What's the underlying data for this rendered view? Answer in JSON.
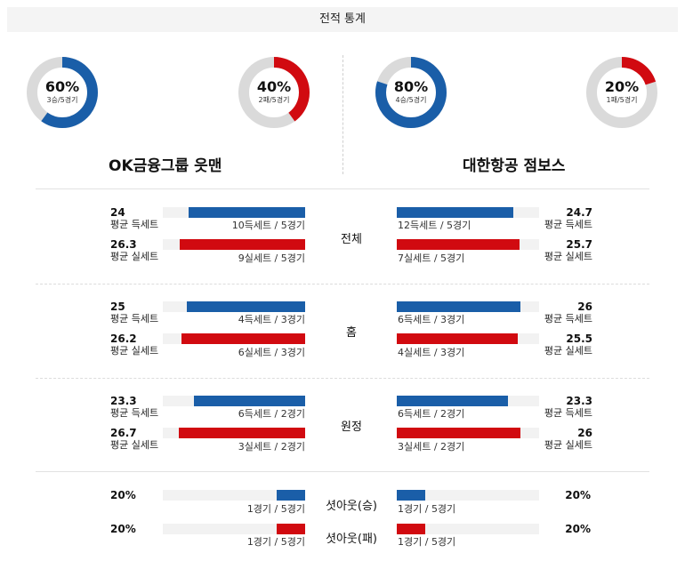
{
  "title": "전적 통계",
  "colors": {
    "blue": "#1a5ea8",
    "red": "#d10a10",
    "track": "#dadada"
  },
  "donuts": [
    {
      "pct_label": "60%",
      "sub": "3승/5경기",
      "value": 0.6,
      "color": "blue"
    },
    {
      "pct_label": "40%",
      "sub": "2패/5경기",
      "value": 0.4,
      "color": "red"
    },
    {
      "pct_label": "80%",
      "sub": "4승/5경기",
      "value": 0.8,
      "color": "blue"
    },
    {
      "pct_label": "20%",
      "sub": "1패/5경기",
      "value": 0.2,
      "color": "red"
    }
  ],
  "teams": {
    "left": "OK금융그룹 읏맨",
    "right": "대한항공 점보스"
  },
  "sections": [
    {
      "category": "전체",
      "left": [
        {
          "value": "24",
          "label": "평균 득세트",
          "caption": "10득세트 / 5경기",
          "fill": 0.82,
          "color": "blue"
        },
        {
          "value": "26.3",
          "label": "평균 실세트",
          "caption": "9실세트 / 5경기",
          "fill": 0.88,
          "color": "red"
        }
      ],
      "right": [
        {
          "value": "24.7",
          "label": "평균 득세트",
          "caption": "12득세트 / 5경기",
          "fill": 0.82,
          "color": "blue"
        },
        {
          "value": "25.7",
          "label": "평균 실세트",
          "caption": "7실세트 / 5경기",
          "fill": 0.86,
          "color": "red"
        }
      ]
    },
    {
      "category": "홈",
      "left": [
        {
          "value": "25",
          "label": "평균 득세트",
          "caption": "4득세트 / 3경기",
          "fill": 0.83,
          "color": "blue"
        },
        {
          "value": "26.2",
          "label": "평균 실세트",
          "caption": "6실세트 / 3경기",
          "fill": 0.87,
          "color": "red"
        }
      ],
      "right": [
        {
          "value": "26",
          "label": "평균 득세트",
          "caption": "6득세트 / 3경기",
          "fill": 0.87,
          "color": "blue"
        },
        {
          "value": "25.5",
          "label": "평균 실세트",
          "caption": "4실세트 / 3경기",
          "fill": 0.85,
          "color": "red"
        }
      ]
    },
    {
      "category": "원정",
      "left": [
        {
          "value": "23.3",
          "label": "평균 득세트",
          "caption": "6득세트 / 2경기",
          "fill": 0.78,
          "color": "blue"
        },
        {
          "value": "26.7",
          "label": "평균 실세트",
          "caption": "3실세트 / 2경기",
          "fill": 0.89,
          "color": "red"
        }
      ],
      "right": [
        {
          "value": "23.3",
          "label": "평균 득세트",
          "caption": "6득세트 / 2경기",
          "fill": 0.78,
          "color": "blue"
        },
        {
          "value": "26",
          "label": "평균 실세트",
          "caption": "3실세트 / 2경기",
          "fill": 0.87,
          "color": "red"
        }
      ]
    }
  ],
  "shutouts": [
    {
      "category": "셧아웃(승)",
      "left": {
        "pct": "20%",
        "caption": "1경기 / 5경기",
        "fill": 0.2,
        "color": "blue"
      },
      "right": {
        "pct": "20%",
        "caption": "1경기 / 5경기",
        "fill": 0.2,
        "color": "blue"
      }
    },
    {
      "category": "셧아웃(패)",
      "left": {
        "pct": "20%",
        "caption": "1경기 / 5경기",
        "fill": 0.2,
        "color": "red"
      },
      "right": {
        "pct": "20%",
        "caption": "1경기 / 5경기",
        "fill": 0.2,
        "color": "red"
      }
    }
  ]
}
